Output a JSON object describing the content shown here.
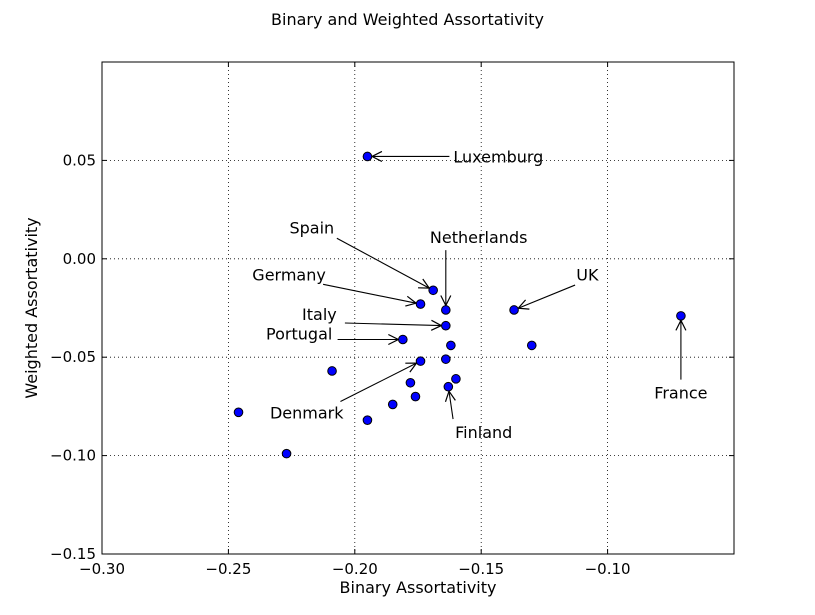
{
  "chart_data": {
    "type": "scatter",
    "title": "Binary and Weighted Assortativity",
    "xlabel": "Binary Assortativity",
    "ylabel": "Weighted Assortativity",
    "xlim": [
      -0.3,
      -0.05
    ],
    "ylim": [
      -0.15,
      0.1
    ],
    "grid": true,
    "marker_color": "#0000ff",
    "xticks": [
      -0.3,
      -0.25,
      -0.2,
      -0.15,
      -0.1
    ],
    "xtick_labels": [
      "−0.30",
      "−0.25",
      "−0.20",
      "−0.15",
      "−0.10"
    ],
    "yticks": [
      -0.15,
      -0.1,
      -0.05,
      0.0,
      0.05
    ],
    "ytick_labels": [
      "−0.15",
      "−0.10",
      "−0.05",
      "0.00",
      "0.05"
    ],
    "points": [
      {
        "x": -0.195,
        "y": 0.052
      },
      {
        "x": -0.169,
        "y": -0.016
      },
      {
        "x": -0.164,
        "y": -0.026
      },
      {
        "x": -0.174,
        "y": -0.023
      },
      {
        "x": -0.164,
        "y": -0.034
      },
      {
        "x": -0.137,
        "y": -0.026
      },
      {
        "x": -0.181,
        "y": -0.041
      },
      {
        "x": -0.162,
        "y": -0.044
      },
      {
        "x": -0.13,
        "y": -0.044
      },
      {
        "x": -0.071,
        "y": -0.029
      },
      {
        "x": -0.164,
        "y": -0.051
      },
      {
        "x": -0.174,
        "y": -0.052
      },
      {
        "x": -0.209,
        "y": -0.057
      },
      {
        "x": -0.16,
        "y": -0.061
      },
      {
        "x": -0.178,
        "y": -0.063
      },
      {
        "x": -0.163,
        "y": -0.065
      },
      {
        "x": -0.176,
        "y": -0.07
      },
      {
        "x": -0.185,
        "y": -0.074
      },
      {
        "x": -0.246,
        "y": -0.078
      },
      {
        "x": -0.195,
        "y": -0.082
      },
      {
        "x": -0.227,
        "y": -0.099
      }
    ],
    "annotations": [
      {
        "text": "Luxemburg",
        "point": [
          -0.195,
          0.052
        ],
        "text_pos": [
          -0.161,
          0.052
        ],
        "anchor": "start"
      },
      {
        "text": "Spain",
        "point": [
          -0.169,
          -0.016
        ],
        "text_pos": [
          -0.217,
          0.016
        ],
        "anchor": "middle"
      },
      {
        "text": "Netherlands",
        "point": [
          -0.164,
          -0.026
        ],
        "text_pos": [
          -0.151,
          0.011
        ],
        "anchor": "middle"
      },
      {
        "text": "Germany",
        "point": [
          -0.174,
          -0.023
        ],
        "text_pos": [
          -0.226,
          -0.008
        ],
        "anchor": "middle"
      },
      {
        "text": "UK",
        "point": [
          -0.137,
          -0.026
        ],
        "text_pos": [
          -0.108,
          -0.008
        ],
        "anchor": "middle"
      },
      {
        "text": "Italy",
        "point": [
          -0.164,
          -0.034
        ],
        "text_pos": [
          -0.214,
          -0.028
        ],
        "anchor": "middle"
      },
      {
        "text": "Portugal",
        "point": [
          -0.181,
          -0.041
        ],
        "text_pos": [
          -0.222,
          -0.038
        ],
        "anchor": "middle"
      },
      {
        "text": "Denmark",
        "point": [
          -0.174,
          -0.052
        ],
        "text_pos": [
          -0.219,
          -0.078
        ],
        "anchor": "middle"
      },
      {
        "text": "Finland",
        "point": [
          -0.163,
          -0.065
        ],
        "text_pos": [
          -0.149,
          -0.088
        ],
        "anchor": "middle"
      },
      {
        "text": "France",
        "point": [
          -0.071,
          -0.029
        ],
        "text_pos": [
          -0.071,
          -0.068
        ],
        "anchor": "middle"
      }
    ]
  }
}
